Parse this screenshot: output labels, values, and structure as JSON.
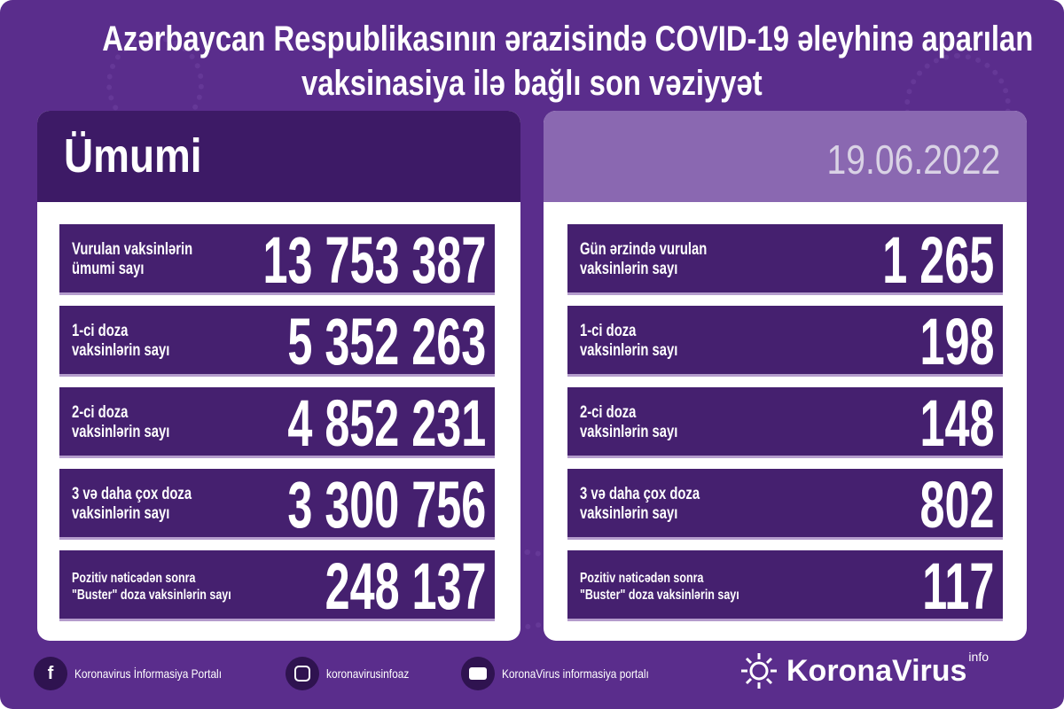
{
  "title": {
    "line1": "Azərbaycan Respublikasının ərazisində COVID-19 əleyhinə aparılan",
    "line2": "vaksinasiya ilə bağlı son vəziyyət"
  },
  "left": {
    "header": "Ümumi",
    "rows": [
      {
        "label1": "Vurulan vaksinlərin",
        "label2": "ümumi sayı",
        "value": "13 753 387"
      },
      {
        "label1": "1-ci doza",
        "label2": "vaksinlərin sayı",
        "value": "5 352 263"
      },
      {
        "label1": "2-ci doza",
        "label2": "vaksinlərin sayı",
        "value": "4 852 231"
      },
      {
        "label1": "3 və daha çox doza",
        "label2": "vaksinlərin sayı",
        "value": "3 300 756"
      },
      {
        "label1": "Pozitiv nəticədən sonra",
        "label2": "\"Buster\" doza vaksinlərin sayı",
        "value": "248 137"
      }
    ]
  },
  "right": {
    "header": "19.06.2022",
    "rows": [
      {
        "label1": "Gün ərzində vurulan",
        "label2": "vaksinlərin sayı",
        "value": "1 265"
      },
      {
        "label1": "1-ci doza",
        "label2": "vaksinlərin sayı",
        "value": "198"
      },
      {
        "label1": "2-ci doza",
        "label2": "vaksinlərin sayı",
        "value": "148"
      },
      {
        "label1": "3 və daha çox doza",
        "label2": "vaksinlərin sayı",
        "value": "802"
      },
      {
        "label1": "Pozitiv nəticədən sonra",
        "label2": "\"Buster\" doza vaksinlərin sayı",
        "value": "117"
      }
    ]
  },
  "footer": {
    "facebook": {
      "icon": "facebook-icon",
      "text": "Koronavirus İnformasiya Portalı"
    },
    "instagram": {
      "icon": "instagram-icon",
      "text": "koronavirusinfoaz"
    },
    "youtube": {
      "icon": "youtube-icon",
      "text": "KoronaVirus informasiya portalı"
    },
    "brand": {
      "name": "KoronaVirus",
      "sup": "info"
    }
  },
  "colors": {
    "background": "#5a2d8c",
    "row": "#45206f",
    "left_header": "#3d1a66",
    "right_header": "#8a68b1"
  }
}
